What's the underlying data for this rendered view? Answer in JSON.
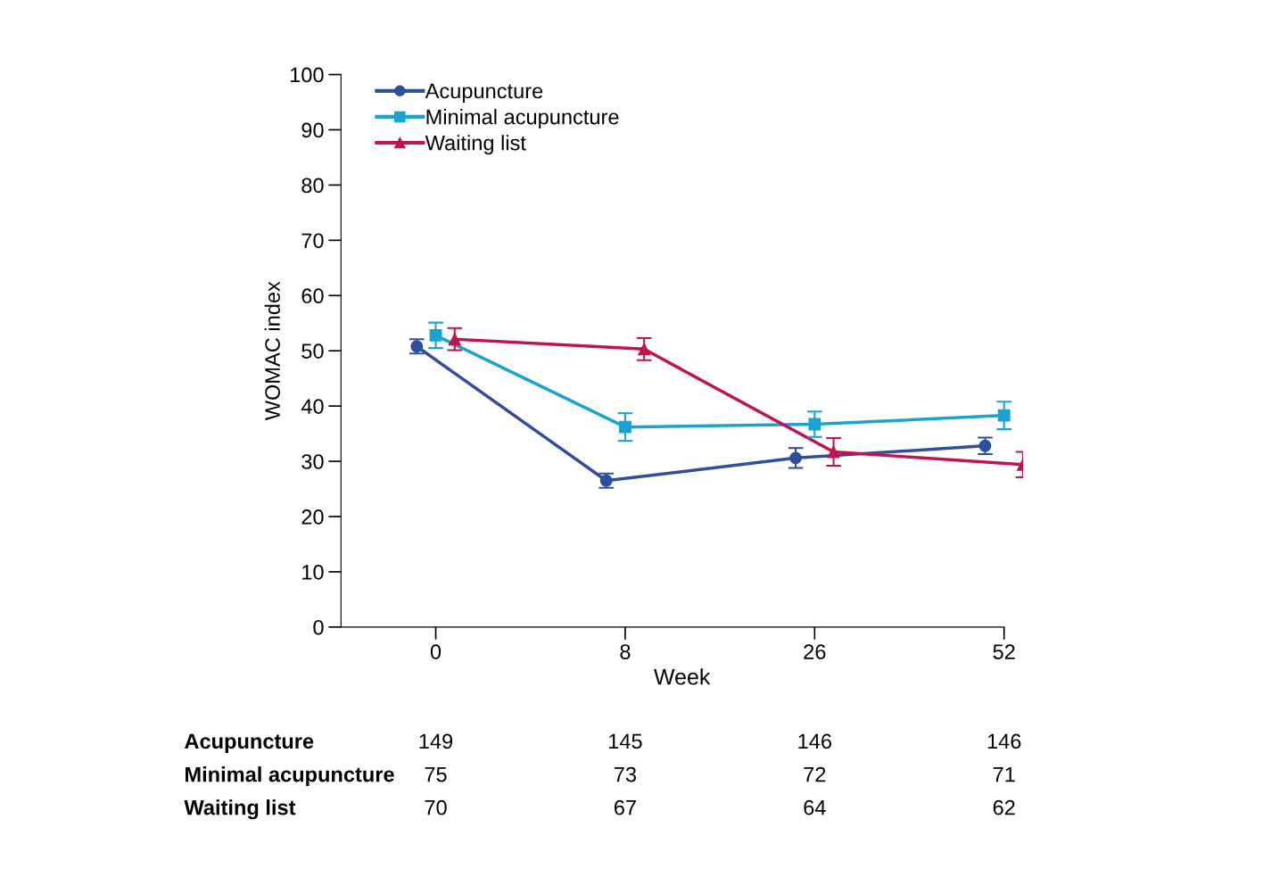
{
  "chart_data": {
    "type": "line",
    "categories": [
      "0",
      "8",
      "26",
      "52"
    ],
    "xlabel": "Week",
    "ylabel": "WOMAC index",
    "ylim": [
      0,
      100
    ],
    "yticks": [
      0,
      10,
      20,
      30,
      40,
      50,
      60,
      70,
      80,
      90,
      100
    ],
    "grid": false,
    "legend": "top left",
    "series": [
      {
        "name": "Acupuncture",
        "color": "#2d4f9e",
        "marker": "circle",
        "values": [
          50.8,
          26.5,
          30.6,
          32.8
        ],
        "errors": [
          1.3,
          1.3,
          1.8,
          1.5
        ]
      },
      {
        "name": "Minimal acupuncture",
        "color": "#1aa3d1",
        "marker": "square",
        "values": [
          52.8,
          36.2,
          36.7,
          38.3
        ],
        "errors": [
          2.3,
          2.5,
          2.3,
          2.5
        ]
      },
      {
        "name": "Waiting list",
        "color": "#c0134f",
        "marker": "triangle",
        "values": [
          52.1,
          50.3,
          31.7,
          29.4
        ],
        "errors": [
          2.0,
          2.0,
          2.5,
          2.3
        ]
      }
    ],
    "annotations": [
      "Acupuncture",
      "149",
      "145",
      "146",
      "146",
      "Minimal acupuncture",
      "75",
      "73",
      "72",
      "71",
      "Waiting list",
      "70",
      "67",
      "64",
      "62"
    ]
  }
}
